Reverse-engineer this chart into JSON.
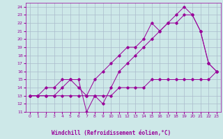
{
  "xlabel": "Windchill (Refroidissement éolien,°C)",
  "background_color": "#cde8e8",
  "line_color": "#990099",
  "grid_color": "#aabbcc",
  "series1_x": [
    0,
    1,
    2,
    3,
    4,
    5,
    6,
    7,
    8,
    9,
    10,
    11,
    12,
    13,
    14,
    15,
    16,
    17,
    18,
    19,
    20,
    21,
    22,
    23
  ],
  "series1_y": [
    13,
    13,
    14,
    14,
    15,
    15,
    15,
    11,
    13,
    12,
    14,
    16,
    17,
    18,
    19,
    20,
    21,
    22,
    22,
    23,
    23,
    21,
    17,
    16
  ],
  "series2_x": [
    0,
    1,
    2,
    3,
    4,
    5,
    6,
    7,
    8,
    9,
    10,
    11,
    12,
    13,
    14,
    15,
    16,
    17,
    18,
    19,
    20,
    21,
    22,
    23
  ],
  "series2_y": [
    13,
    13,
    13,
    13,
    13,
    13,
    13,
    13,
    13,
    13,
    13,
    14,
    14,
    14,
    14,
    15,
    15,
    15,
    15,
    15,
    15,
    15,
    15,
    16
  ],
  "series3_x": [
    0,
    1,
    2,
    3,
    4,
    5,
    6,
    7,
    8,
    9,
    10,
    11,
    12,
    13,
    14,
    15,
    16,
    17,
    18,
    19,
    20,
    21,
    22,
    23
  ],
  "series3_y": [
    13,
    13,
    13,
    13,
    14,
    15,
    14,
    13,
    15,
    16,
    17,
    18,
    19,
    19,
    20,
    22,
    21,
    22,
    23,
    24,
    23,
    21,
    17,
    16
  ],
  "xlim": [
    -0.5,
    23.5
  ],
  "ylim": [
    11,
    24.5
  ],
  "yticks": [
    11,
    12,
    13,
    14,
    15,
    16,
    17,
    18,
    19,
    20,
    21,
    22,
    23,
    24
  ],
  "xticks": [
    0,
    1,
    2,
    3,
    4,
    5,
    6,
    7,
    8,
    9,
    10,
    11,
    12,
    13,
    14,
    15,
    16,
    17,
    18,
    19,
    20,
    21,
    22,
    23
  ]
}
